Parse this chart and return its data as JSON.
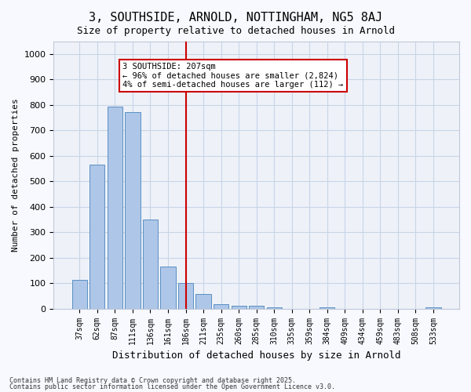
{
  "title": "3, SOUTHSIDE, ARNOLD, NOTTINGHAM, NG5 8AJ",
  "subtitle": "Size of property relative to detached houses in Arnold",
  "xlabel": "Distribution of detached houses by size in Arnold",
  "ylabel": "Number of detached properties",
  "categories": [
    "37sqm",
    "62sqm",
    "87sqm",
    "111sqm",
    "136sqm",
    "161sqm",
    "186sqm",
    "211sqm",
    "235sqm",
    "260sqm",
    "285sqm",
    "310sqm",
    "335sqm",
    "359sqm",
    "384sqm",
    "409sqm",
    "434sqm",
    "459sqm",
    "483sqm",
    "508sqm",
    "533sqm"
  ],
  "values": [
    112,
    565,
    793,
    770,
    350,
    165,
    100,
    57,
    17,
    12,
    10,
    5,
    0,
    0,
    5,
    0,
    0,
    0,
    0,
    0,
    5
  ],
  "bar_color": "#aec6e8",
  "bar_edge_color": "#5a8fc2",
  "highlight_index": 6,
  "highlight_bar_color": "#aec6e8",
  "vline_x": 6.5,
  "vline_color": "#cc0000",
  "ylim": [
    0,
    1050
  ],
  "yticks": [
    0,
    100,
    200,
    300,
    400,
    500,
    600,
    700,
    800,
    900,
    1000
  ],
  "annotation_lines": [
    "3 SOUTHSIDE: 207sqm",
    "← 96% of detached houses are smaller (2,824)",
    "4% of semi-detached houses are larger (112) →"
  ],
  "annotation_box_color": "#cc0000",
  "grid_color": "#c8d4e8",
  "bg_color": "#eef2f8",
  "footer_line1": "Contains HM Land Registry data © Crown copyright and database right 2025.",
  "footer_line2": "Contains public sector information licensed under the Open Government Licence v3.0."
}
